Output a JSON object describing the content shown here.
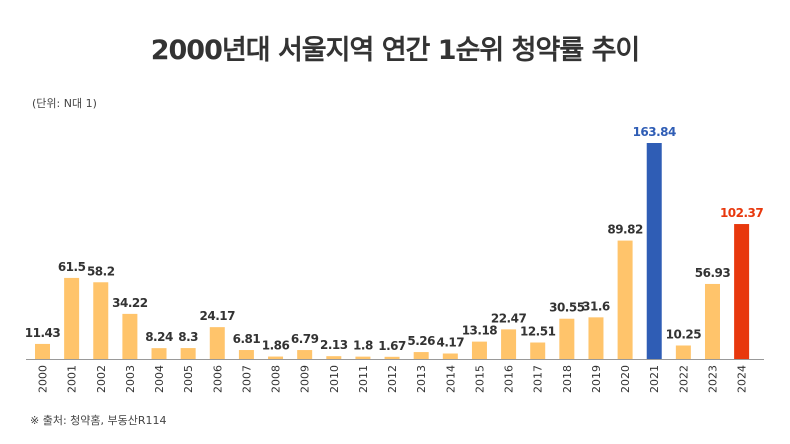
{
  "chart_data": {
    "type": "bar",
    "title": "2000년대 서울지역 연간 1순위 청약률 추이",
    "unit_label": "(단위: N대 1)",
    "source": "※ 출처: 청약홈, 부동산R114",
    "categories": [
      "2000",
      "2001",
      "2002",
      "2003",
      "2004",
      "2005",
      "2006",
      "2007",
      "2008",
      "2009",
      "2010",
      "2011",
      "2012",
      "2013",
      "2014",
      "2015",
      "2016",
      "2017",
      "2018",
      "2019",
      "2020",
      "2021",
      "2022",
      "2023",
      "2024"
    ],
    "values": [
      11.43,
      61.5,
      58.2,
      34.22,
      8.24,
      8.3,
      24.17,
      6.81,
      1.86,
      6.79,
      2.13,
      1.8,
      1.67,
      5.26,
      4.17,
      13.18,
      22.47,
      12.51,
      30.55,
      31.6,
      89.82,
      163.84,
      10.25,
      56.93,
      102.37
    ],
    "value_labels": [
      "11.43",
      "61.5",
      "58.2",
      "34.22",
      "8.24",
      "8.3",
      "24.17",
      "6.81",
      "1.86",
      "6.79",
      "2.13",
      "1.8",
      "1.67",
      "5.26",
      "4.17",
      "13.18",
      "22.47",
      "12.51",
      "30.55",
      "31.6",
      "89.82",
      "163.84",
      "10.25",
      "56.93",
      "102.37"
    ],
    "ylim": [
      0,
      163.84
    ],
    "grid": false,
    "colors": {
      "default": "#FFC46B",
      "highlight_2021": "#2F5DB5",
      "highlight_2024": "#E8380D",
      "label_default": "#333333",
      "axis": "#999999"
    },
    "highlights": {
      "2021": "highlight_2021",
      "2024": "highlight_2024"
    }
  }
}
